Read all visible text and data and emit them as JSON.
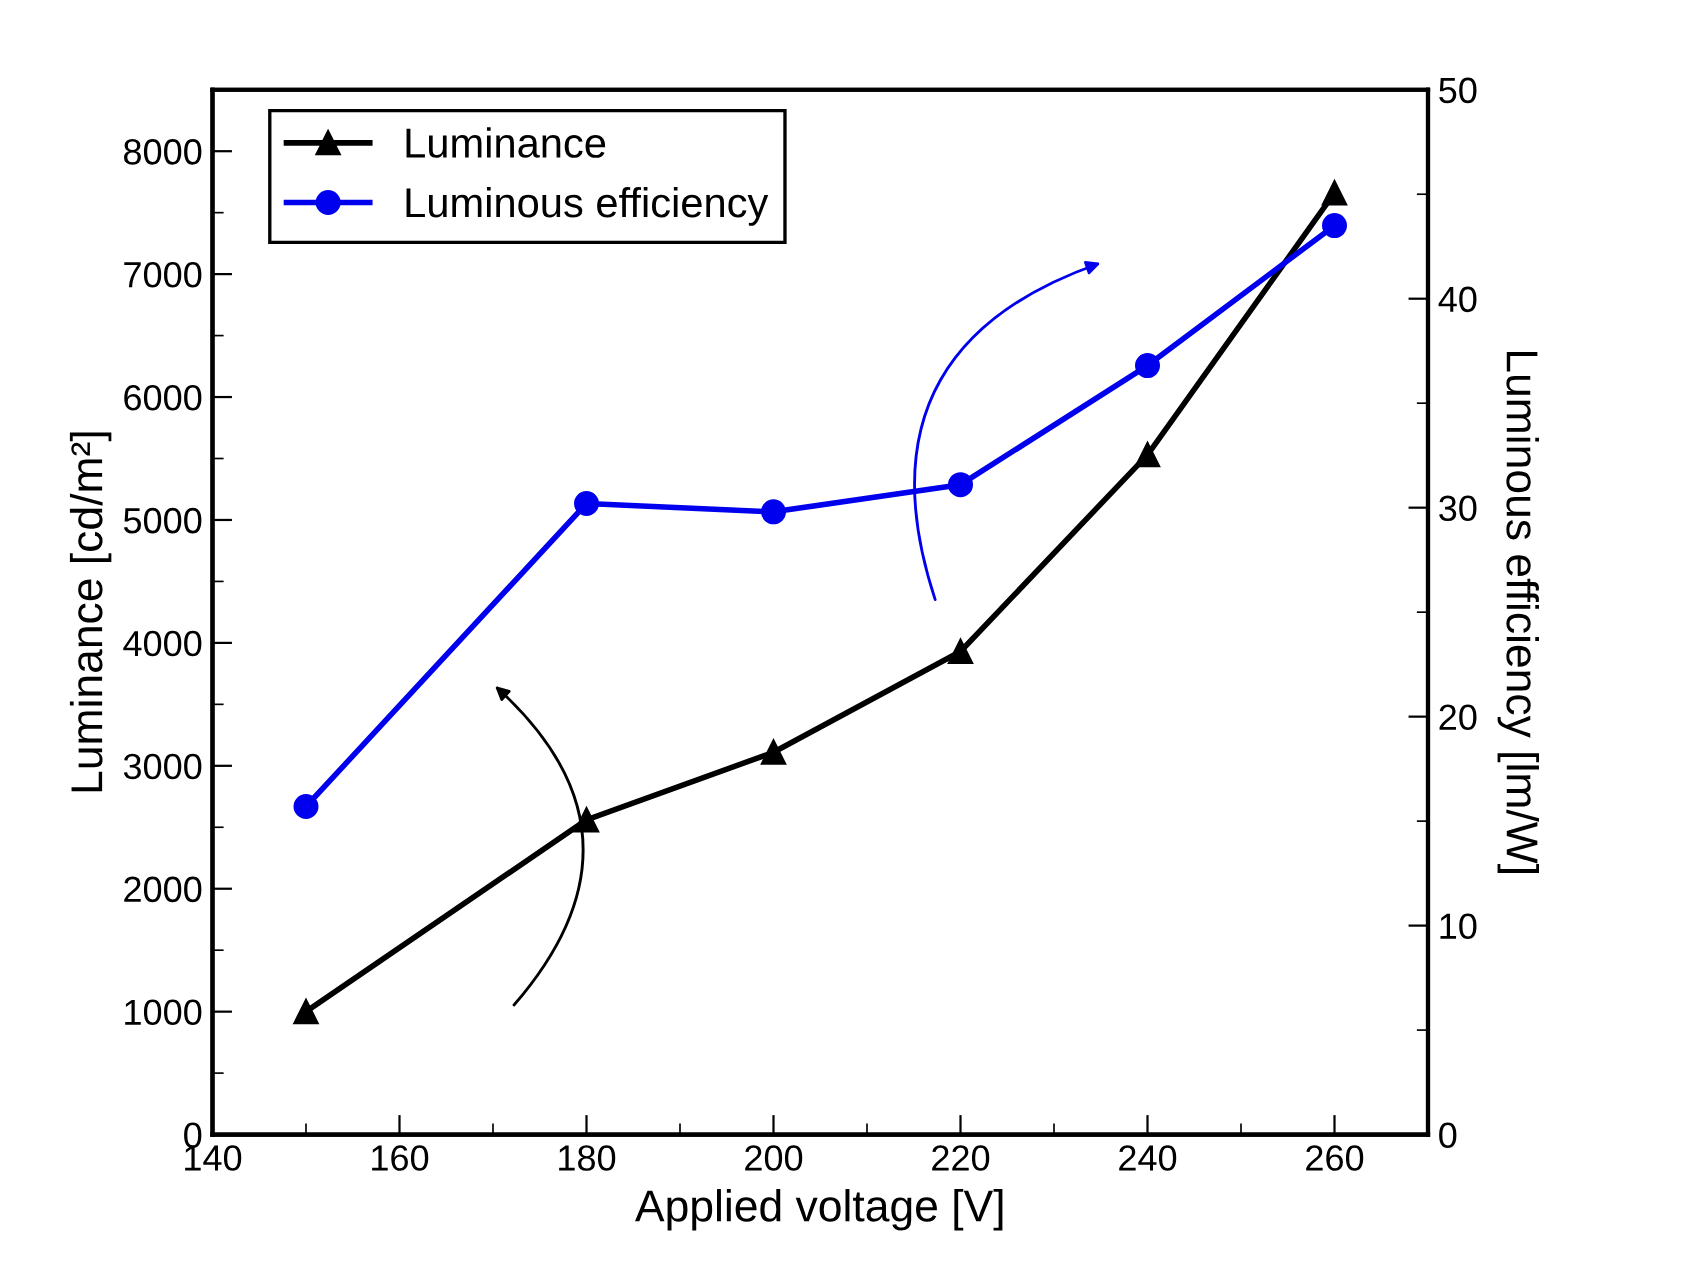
{
  "chart_data": {
    "type": "line",
    "xlabel": "Applied voltage [V]",
    "ylabel": "Luminance [cd/m²]",
    "y2label": "Luminous efficiency [lm/W]",
    "x": [
      150,
      180,
      200,
      220,
      240,
      260
    ],
    "series": [
      {
        "name": "Luminance",
        "color": "#000000",
        "marker": "triangle",
        "values": [
          1000,
          2560,
          3110,
          3930,
          5530,
          7660
        ]
      },
      {
        "name": "Luminous efficiency",
        "color": "#0000ee",
        "marker": "circle",
        "axis": "y2",
        "values": [
          15.7,
          30.2,
          29.8,
          31.1,
          36.8,
          43.5
        ]
      }
    ],
    "xlim": [
      140,
      270
    ],
    "xticks": [
      140,
      160,
      180,
      200,
      220,
      240,
      260
    ],
    "ylim": [
      0,
      8500
    ],
    "yticks": [
      0,
      1000,
      2000,
      3000,
      4000,
      5000,
      6000,
      7000,
      8000
    ],
    "y2lim": [
      0,
      50
    ],
    "y2ticks": [
      0,
      10,
      20,
      30,
      40,
      50
    ],
    "legend": "top left",
    "grid": false,
    "line_style": "solid"
  }
}
